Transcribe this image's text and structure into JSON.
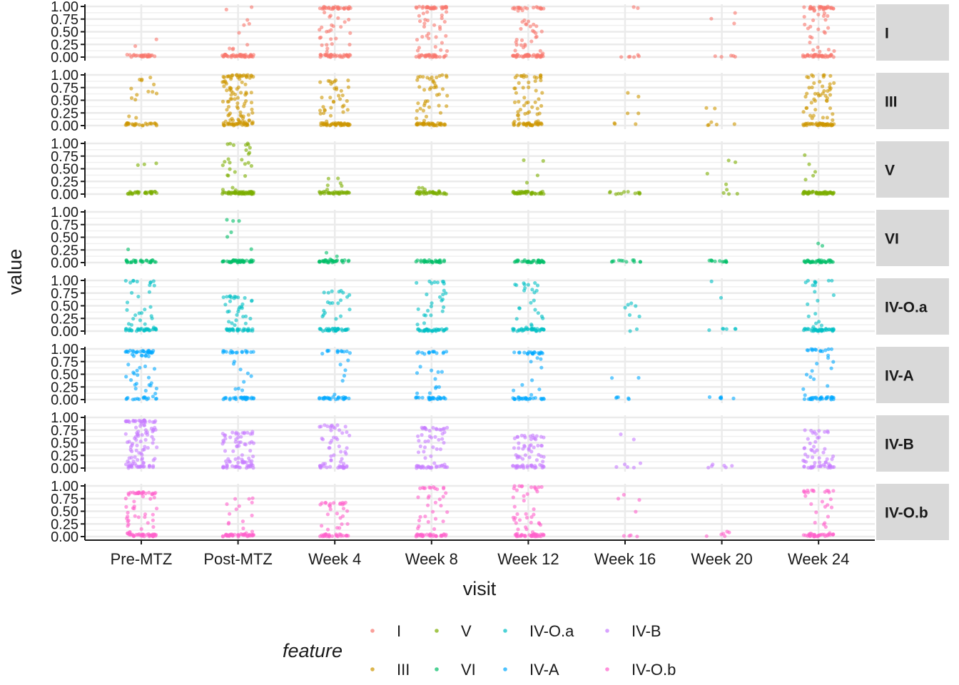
{
  "chart_data": {
    "type": "scatter",
    "subtype": "jittered strip plot faceted by feature",
    "xlabel": "visit",
    "ylabel": "value",
    "categories": [
      "Pre-MTZ",
      "Post-MTZ",
      "Week 4",
      "Week 8",
      "Week 12",
      "Week 16",
      "Week 20",
      "Week 24"
    ],
    "yticks": [
      "0.00",
      "0.25",
      "0.50",
      "0.75",
      "1.00"
    ],
    "ylim": [
      0,
      1
    ],
    "grid": true,
    "legend": {
      "title": "feature",
      "position": "bottom",
      "entries": [
        "I",
        "V",
        "IV-O.a",
        "IV-B",
        "III",
        "VI",
        "IV-A",
        "IV-O.b"
      ]
    },
    "facets": [
      {
        "name": "I",
        "color": "#F8766D",
        "profile": [
          {
            "n": 30,
            "low": 0.9,
            "mid": 0.08,
            "max": 0.4
          },
          {
            "n": 55,
            "low": 0.75,
            "mid": 0.2,
            "max": 1.0
          },
          {
            "n": 90,
            "low": 0.35,
            "mid": 0.35,
            "max": 1.0
          },
          {
            "n": 90,
            "low": 0.35,
            "mid": 0.35,
            "max": 1.0
          },
          {
            "n": 90,
            "low": 0.4,
            "mid": 0.3,
            "max": 1.0
          },
          {
            "n": 8,
            "low": 0.7,
            "mid": 0.0,
            "max": 1.0
          },
          {
            "n": 8,
            "low": 0.5,
            "mid": 0.3,
            "max": 1.0
          },
          {
            "n": 90,
            "low": 0.4,
            "mid": 0.3,
            "max": 1.0
          }
        ]
      },
      {
        "name": "III",
        "color": "#CD9600",
        "profile": [
          {
            "n": 40,
            "low": 0.55,
            "mid": 0.35,
            "max": 0.98
          },
          {
            "n": 120,
            "low": 0.3,
            "mid": 0.5,
            "max": 1.0
          },
          {
            "n": 80,
            "low": 0.5,
            "mid": 0.4,
            "max": 0.9
          },
          {
            "n": 80,
            "low": 0.5,
            "mid": 0.4,
            "max": 1.0
          },
          {
            "n": 80,
            "low": 0.45,
            "mid": 0.4,
            "max": 1.0
          },
          {
            "n": 7,
            "low": 0.6,
            "mid": 0.4,
            "max": 0.65
          },
          {
            "n": 7,
            "low": 0.6,
            "mid": 0.4,
            "max": 0.7
          },
          {
            "n": 90,
            "low": 0.45,
            "mid": 0.45,
            "max": 1.0
          }
        ]
      },
      {
        "name": "V",
        "color": "#7CAE00",
        "profile": [
          {
            "n": 35,
            "low": 0.95,
            "mid": 0.02,
            "max": 0.62
          },
          {
            "n": 80,
            "low": 0.55,
            "mid": 0.4,
            "max": 1.0
          },
          {
            "n": 40,
            "low": 0.9,
            "mid": 0.1,
            "max": 0.32
          },
          {
            "n": 40,
            "low": 0.95,
            "mid": 0.05,
            "max": 0.2
          },
          {
            "n": 45,
            "low": 0.9,
            "mid": 0.05,
            "max": 0.7
          },
          {
            "n": 12,
            "low": 1.0,
            "mid": 0.0,
            "max": 0.05
          },
          {
            "n": 8,
            "low": 0.6,
            "mid": 0.3,
            "max": 0.7
          },
          {
            "n": 60,
            "low": 0.9,
            "mid": 0.08,
            "max": 0.85
          }
        ]
      },
      {
        "name": "VI",
        "color": "#00BE67",
        "profile": [
          {
            "n": 30,
            "low": 0.95,
            "mid": 0.02,
            "max": 0.85
          },
          {
            "n": 50,
            "low": 0.8,
            "mid": 0.15,
            "max": 0.85
          },
          {
            "n": 35,
            "low": 0.95,
            "mid": 0.05,
            "max": 0.25
          },
          {
            "n": 30,
            "low": 1.0,
            "mid": 0.0,
            "max": 0.1
          },
          {
            "n": 35,
            "low": 0.95,
            "mid": 0.05,
            "max": 0.15
          },
          {
            "n": 12,
            "low": 1.0,
            "mid": 0.0,
            "max": 0.05
          },
          {
            "n": 12,
            "low": 1.0,
            "mid": 0.0,
            "max": 0.05
          },
          {
            "n": 40,
            "low": 0.95,
            "mid": 0.02,
            "max": 0.45
          }
        ]
      },
      {
        "name": "IV-O.a",
        "color": "#00BFC4",
        "profile": [
          {
            "n": 60,
            "low": 0.55,
            "mid": 0.35,
            "max": 1.0
          },
          {
            "n": 60,
            "low": 0.6,
            "mid": 0.3,
            "max": 0.7
          },
          {
            "n": 55,
            "low": 0.65,
            "mid": 0.3,
            "max": 0.8
          },
          {
            "n": 60,
            "low": 0.55,
            "mid": 0.35,
            "max": 0.98
          },
          {
            "n": 60,
            "low": 0.55,
            "mid": 0.35,
            "max": 0.95
          },
          {
            "n": 8,
            "low": 0.6,
            "mid": 0.4,
            "max": 0.55
          },
          {
            "n": 8,
            "low": 0.5,
            "mid": 0.2,
            "max": 1.0
          },
          {
            "n": 60,
            "low": 0.55,
            "mid": 0.35,
            "max": 1.0
          }
        ]
      },
      {
        "name": "IV-A",
        "color": "#00A9FF",
        "profile": [
          {
            "n": 70,
            "low": 0.35,
            "mid": 0.35,
            "max": 0.97
          },
          {
            "n": 55,
            "low": 0.6,
            "mid": 0.2,
            "max": 0.97
          },
          {
            "n": 45,
            "low": 0.65,
            "mid": 0.15,
            "max": 0.97
          },
          {
            "n": 50,
            "low": 0.6,
            "mid": 0.2,
            "max": 0.95
          },
          {
            "n": 55,
            "low": 0.55,
            "mid": 0.2,
            "max": 0.95
          },
          {
            "n": 7,
            "low": 0.6,
            "mid": 0.4,
            "max": 0.45
          },
          {
            "n": 6,
            "low": 1.0,
            "mid": 0.0,
            "max": 0.02
          },
          {
            "n": 55,
            "low": 0.6,
            "mid": 0.2,
            "max": 1.0
          }
        ]
      },
      {
        "name": "IV-B",
        "color": "#C77CFF",
        "profile": [
          {
            "n": 110,
            "low": 0.2,
            "mid": 0.6,
            "max": 0.95
          },
          {
            "n": 80,
            "low": 0.3,
            "mid": 0.6,
            "max": 0.72
          },
          {
            "n": 60,
            "low": 0.35,
            "mid": 0.55,
            "max": 0.85
          },
          {
            "n": 65,
            "low": 0.3,
            "mid": 0.55,
            "max": 0.8
          },
          {
            "n": 70,
            "low": 0.3,
            "mid": 0.6,
            "max": 0.65
          },
          {
            "n": 7,
            "low": 0.4,
            "mid": 0.5,
            "max": 0.72
          },
          {
            "n": 6,
            "low": 0.6,
            "mid": 0.3,
            "max": 0.55
          },
          {
            "n": 60,
            "low": 0.35,
            "mid": 0.55,
            "max": 0.75
          }
        ]
      },
      {
        "name": "IV-O.b",
        "color": "#FF61CC",
        "profile": [
          {
            "n": 90,
            "low": 0.35,
            "mid": 0.5,
            "max": 0.88
          },
          {
            "n": 55,
            "low": 0.7,
            "mid": 0.25,
            "max": 0.78
          },
          {
            "n": 55,
            "low": 0.5,
            "mid": 0.4,
            "max": 0.68
          },
          {
            "n": 65,
            "low": 0.5,
            "mid": 0.35,
            "max": 0.98
          },
          {
            "n": 75,
            "low": 0.5,
            "mid": 0.35,
            "max": 1.0
          },
          {
            "n": 8,
            "low": 0.4,
            "mid": 0.4,
            "max": 0.95
          },
          {
            "n": 6,
            "low": 0.8,
            "mid": 0.2,
            "max": 0.1
          },
          {
            "n": 60,
            "low": 0.5,
            "mid": 0.35,
            "max": 0.92
          }
        ]
      }
    ]
  }
}
